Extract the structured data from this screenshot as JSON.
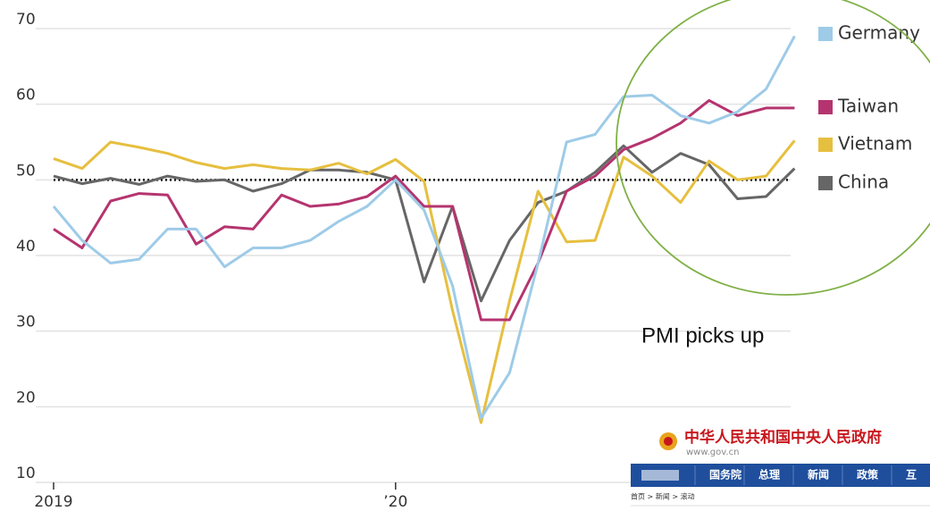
{
  "chart_data": {
    "type": "line",
    "categories": [
      "2019",
      null,
      null,
      null,
      null,
      null,
      null,
      null,
      null,
      null,
      null,
      null,
      "’20",
      null,
      null,
      null,
      null,
      null,
      null,
      null,
      null,
      null,
      null,
      null,
      null,
      null,
      null
    ],
    "series": [
      {
        "name": "Germany",
        "color": "#9ecbe8",
        "values": [
          46.5,
          42,
          39,
          39.5,
          43.5,
          43.5,
          38.5,
          41,
          41,
          42,
          44.5,
          46.5,
          50,
          46,
          36,
          18.5,
          24.5,
          39,
          55,
          56,
          61,
          61.2,
          58.5,
          57.5,
          59,
          62,
          69
        ]
      },
      {
        "name": "Taiwan",
        "color": "#b5346f",
        "values": [
          43.5,
          41,
          47.2,
          48.2,
          48,
          41.5,
          43.8,
          43.5,
          48,
          46.5,
          46.8,
          47.8,
          50.5,
          46.5,
          46.5,
          31.5,
          31.5,
          39,
          48.5,
          50.5,
          54,
          55.5,
          57.5,
          60.5,
          58.5,
          59.5,
          59.5
        ]
      },
      {
        "name": "Vietnam",
        "color": "#e6bf3f",
        "values": [
          52.8,
          51.5,
          55,
          54.3,
          53.5,
          52.3,
          51.5,
          52,
          51.5,
          51.3,
          52.2,
          50.8,
          52.7,
          49.8,
          32.7,
          17.9,
          34,
          48.5,
          41.8,
          42,
          53,
          50.5,
          47,
          52.5,
          50,
          50.5,
          55.2
        ]
      },
      {
        "name": "China",
        "color": "#666666",
        "values": [
          50.5,
          49.5,
          50.2,
          49.4,
          50.5,
          49.8,
          50,
          48.5,
          49.5,
          51.3,
          51.3,
          51,
          50,
          36.5,
          46.5,
          34,
          42,
          47,
          48.5,
          51,
          54.5,
          51,
          53.5,
          52,
          47.5,
          47.8,
          51.5
        ]
      }
    ],
    "ylim": [
      10,
      70
    ],
    "yticks": [
      10,
      20,
      30,
      40,
      50,
      60,
      70
    ],
    "grid": true,
    "reference_line": 50,
    "legend": "right",
    "annotation": "PMI picks up"
  },
  "inset": {
    "title": "中华人民共和国中央人民政府",
    "url": "www.gov.cn",
    "nav": [
      "国务院",
      "总理",
      "新闻",
      "政策",
      "互"
    ],
    "breadcrumb": "首页 > 新闻 > 滚动"
  }
}
